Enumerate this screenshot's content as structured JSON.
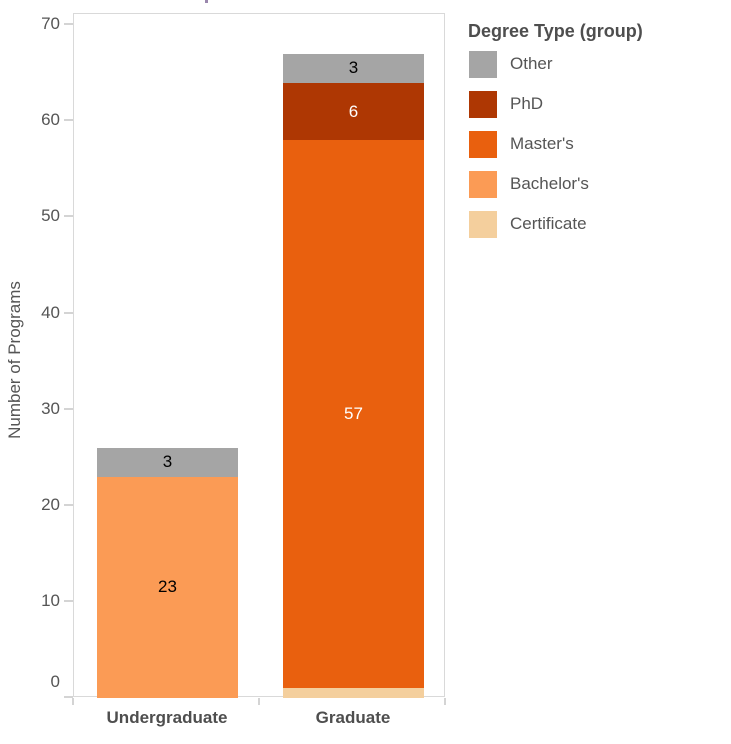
{
  "chart_data": {
    "type": "bar",
    "stacked": true,
    "orientation": "vertical",
    "categories": [
      "Undergraduate",
      "Graduate"
    ],
    "series": [
      {
        "name": "Certificate",
        "color": "#f4cf9d",
        "label_color": "#000000",
        "values": [
          0,
          1
        ]
      },
      {
        "name": "Bachelor's",
        "color": "#fb9b55",
        "label_color": "#000000",
        "values": [
          23,
          0
        ]
      },
      {
        "name": "Master's",
        "color": "#e9600e",
        "label_color": "#ffffff",
        "values": [
          0,
          57
        ]
      },
      {
        "name": "PhD",
        "color": "#ae3703",
        "label_color": "#ffffff",
        "values": [
          0,
          6
        ]
      },
      {
        "name": "Other",
        "color": "#a5a5a5",
        "label_color": "#000000",
        "values": [
          3,
          3
        ]
      }
    ],
    "totals": [
      26,
      67
    ],
    "xlabel": "",
    "ylabel": "Number of Programs",
    "yticks": [
      0,
      10,
      20,
      30,
      40,
      50,
      60,
      70
    ],
    "ylim": [
      0,
      70
    ],
    "grid": false,
    "legend_position": "right"
  },
  "legend": {
    "title": "Degree Type (group)",
    "items": [
      {
        "label": "Other",
        "color": "#a5a5a5"
      },
      {
        "label": "PhD",
        "color": "#ae3703"
      },
      {
        "label": "Master's",
        "color": "#e9600e"
      },
      {
        "label": "Bachelor's",
        "color": "#fb9b55"
      },
      {
        "label": "Certificate",
        "color": "#f4cf9d"
      }
    ]
  },
  "colors": {
    "axis_frame": "#d9d9d9",
    "tick_text": "#555555",
    "category_text": "#4e4e4e",
    "background": "#ffffff"
  }
}
